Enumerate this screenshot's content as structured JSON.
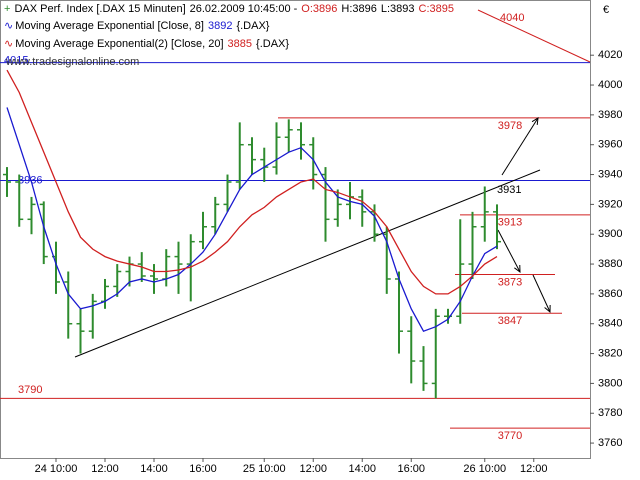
{
  "chart_data": {
    "type": "ohlc",
    "header": {
      "instrument": "DAX Perf. Index [.DAX 15 Minuten]",
      "timestamp": "26.02.2009 10:45:00 -",
      "open": "O:3896",
      "high": "H:3896",
      "low": "L:3893",
      "close": "C:3895"
    },
    "watermark": "www.tradesignalonline.com",
    "currency": "€",
    "categories": [
      null,
      null,
      null,
      null,
      "24 10:00",
      null,
      null,
      null,
      "12:00",
      null,
      null,
      null,
      "14:00",
      null,
      null,
      null,
      "16:00",
      null,
      null,
      null,
      null,
      "25 10:00",
      null,
      null,
      null,
      "12:00",
      null,
      null,
      null,
      "14:00",
      null,
      null,
      null,
      "16:00",
      null,
      null,
      null,
      null,
      null,
      "26 10:00",
      null,
      null,
      null,
      "12:00"
    ],
    "ohlc": {
      "color": "#2e8b2e",
      "open": [
        3940,
        3935,
        3910,
        3920,
        3885,
        3868,
        3840,
        3835,
        3855,
        3865,
        3875,
        3880,
        3872,
        3870,
        3885,
        3880,
        3895,
        3905,
        3920,
        3935,
        3960,
        3950,
        3945,
        3965,
        3970,
        3960,
        3940,
        3910,
        3920,
        3925,
        3915,
        3900,
        3870,
        3835,
        3815,
        3800,
        3845,
        3845,
        3880,
        3905,
        3915,
        null,
        null,
        null
      ],
      "high": [
        3945,
        3940,
        3925,
        3922,
        3895,
        3875,
        3850,
        3860,
        3870,
        3880,
        3885,
        3888,
        3880,
        3890,
        3895,
        3900,
        3915,
        3925,
        3940,
        3975,
        3965,
        3958,
        3975,
        3977,
        3975,
        3965,
        3945,
        3930,
        3935,
        3930,
        3920,
        3905,
        3875,
        3845,
        3825,
        3850,
        3850,
        3910,
        3915,
        3932,
        3920,
        null,
        null,
        null
      ],
      "low": [
        3925,
        3905,
        3900,
        3880,
        3860,
        3830,
        3820,
        3830,
        3850,
        3858,
        3865,
        3868,
        3860,
        3865,
        3860,
        3855,
        3890,
        3900,
        3915,
        3930,
        3940,
        3935,
        3940,
        3955,
        3950,
        3930,
        3895,
        3905,
        3910,
        3905,
        3895,
        3860,
        3820,
        3800,
        3795,
        3790,
        3840,
        3840,
        3870,
        3895,
        3890,
        null,
        null,
        null
      ],
      "close": [
        3935,
        3910,
        3920,
        3885,
        3868,
        3840,
        3835,
        3855,
        3865,
        3875,
        3880,
        3872,
        3870,
        3885,
        3880,
        3895,
        3905,
        3920,
        3935,
        3960,
        3950,
        3945,
        3965,
        3970,
        3960,
        3940,
        3910,
        3920,
        3925,
        3915,
        3900,
        3870,
        3835,
        3815,
        3800,
        3845,
        3845,
        3880,
        3905,
        3915,
        3895,
        null,
        null,
        null
      ]
    },
    "series": [
      {
        "name": "Moving Average Exponential [Close, 8]",
        "last": 3892,
        "symbol": "{.DAX}",
        "color": "#1a1ad0",
        "values": [
          3985,
          3960,
          3935,
          3905,
          3880,
          3860,
          3850,
          3852,
          3855,
          3860,
          3868,
          3870,
          3868,
          3870,
          3873,
          3880,
          3888,
          3900,
          3915,
          3930,
          3940,
          3945,
          3950,
          3955,
          3958,
          3950,
          3935,
          3925,
          3922,
          3920,
          3912,
          3895,
          3870,
          3850,
          3835,
          3838,
          3843,
          3855,
          3872,
          3887,
          3892,
          null,
          null,
          null
        ]
      },
      {
        "name": "Moving Average Exponential(2) [Close, 20]",
        "last": 3885,
        "symbol": "{.DAX}",
        "color": "#d02020",
        "values": [
          4010,
          3995,
          3975,
          3955,
          3935,
          3915,
          3898,
          3890,
          3885,
          3882,
          3880,
          3878,
          3875,
          3875,
          3876,
          3878,
          3882,
          3888,
          3895,
          3905,
          3913,
          3918,
          3925,
          3930,
          3935,
          3937,
          3930,
          3928,
          3925,
          3922,
          3915,
          3905,
          3890,
          3875,
          3865,
          3860,
          3860,
          3865,
          3872,
          3880,
          3885,
          null,
          null,
          null
        ]
      }
    ],
    "levels": [
      {
        "value": 4015,
        "color": "#1a1ad0"
      },
      {
        "value": 3936,
        "color": "#1a1ad0"
      },
      {
        "value": 3978,
        "color": "#d02020"
      },
      {
        "value": 3913,
        "color": "#d02020"
      },
      {
        "value": 3873,
        "color": "#d02020"
      },
      {
        "value": 3847,
        "color": "#d02020"
      },
      {
        "value": 3790,
        "color": "#d02020"
      },
      {
        "value": 3770,
        "color": "#d02020"
      }
    ],
    "annotations": [
      {
        "value": 4040,
        "color": "#d02020"
      },
      {
        "value": 3931,
        "color": "#000000"
      }
    ],
    "ylim": [
      3750,
      4057
    ],
    "yticks": [
      3760,
      3780,
      3800,
      3820,
      3840,
      3860,
      3880,
      3900,
      3920,
      3940,
      3960,
      3980,
      4000,
      4020
    ]
  }
}
